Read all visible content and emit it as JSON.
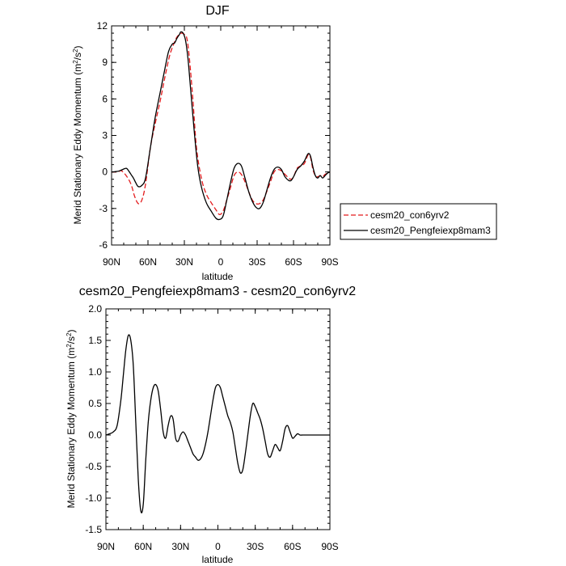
{
  "chart_data": [
    {
      "type": "line",
      "title": "DJF",
      "xlabel": "latitude",
      "ylabel": "Merid Stationary Eddy Momentum (m²/s²)",
      "ylabel_main": "Merid Stationary Eddy Momentum (m",
      "ylabel_sup": "2",
      "ylabel_mid": "/s",
      "ylabel_sup2": "2",
      "ylabel_end": ")",
      "x_ticks": [
        90,
        60,
        30,
        0,
        -30,
        -60,
        -90
      ],
      "x_tick_labels": [
        "90N",
        "60N",
        "30N",
        "0",
        "30S",
        "60S",
        "90S"
      ],
      "xlim": [
        90,
        -90
      ],
      "ylim": [
        -6,
        12
      ],
      "y_ticks": [
        -6,
        -3,
        0,
        3,
        6,
        9,
        12
      ],
      "y_tick_labels": [
        "-6",
        "-3",
        "0",
        "3",
        "6",
        "9",
        "12"
      ],
      "legend_position": "right",
      "series": [
        {
          "name": "cesm20_con6yrv2",
          "color": "#e31a1c",
          "dash": "dashed",
          "x": [
            90,
            85,
            82,
            78,
            74,
            71,
            68,
            65,
            62,
            58,
            54,
            50,
            46,
            42,
            38,
            36,
            34,
            32,
            30,
            28,
            26,
            23,
            20,
            16,
            12,
            8,
            4,
            1,
            -2,
            -5,
            -8,
            -11,
            -14,
            -17,
            -20,
            -23,
            -26,
            -29,
            -32,
            -35,
            -38,
            -41,
            -44,
            -47,
            -50,
            -53,
            -56,
            -58,
            -60,
            -63,
            -66,
            -69,
            -72,
            -74,
            -76,
            -78,
            -80,
            -82,
            -84,
            -86,
            -88,
            -90
          ],
          "y": [
            0,
            0,
            0.1,
            -0.3,
            -1.0,
            -2.0,
            -2.6,
            -2.3,
            -1.0,
            2.0,
            4.0,
            5.8,
            7.8,
            9.6,
            10.7,
            11.1,
            11.3,
            11.4,
            11.3,
            11.0,
            9.5,
            6.0,
            2.0,
            -0.5,
            -1.8,
            -2.5,
            -3.1,
            -3.5,
            -3.2,
            -2.3,
            -1.3,
            -0.3,
            0.0,
            -0.2,
            -0.8,
            -1.6,
            -2.3,
            -2.6,
            -2.6,
            -2.3,
            -1.6,
            -0.8,
            0.0,
            0.2,
            0.1,
            -0.2,
            -0.5,
            -0.6,
            -0.4,
            0.3,
            0.5,
            0.7,
            1.4,
            1.2,
            0.2,
            -0.3,
            -0.4,
            -0.3,
            -0.4,
            -0.2,
            -0.1,
            0
          ]
        },
        {
          "name": "cesm20_Pengfeiexp8mam3",
          "color": "#000000",
          "dash": "solid",
          "x": [
            90,
            85,
            82,
            78,
            76,
            74,
            72,
            70,
            68,
            65,
            62,
            58,
            54,
            50,
            46,
            43,
            40,
            38,
            36,
            34,
            33,
            31,
            29,
            27,
            25,
            22,
            19,
            16,
            12,
            8,
            4,
            1,
            -2,
            -5,
            -8,
            -11,
            -14,
            -17,
            -20,
            -23,
            -26,
            -29,
            -32,
            -35,
            -38,
            -41,
            -44,
            -47,
            -50,
            -53,
            -56,
            -58,
            -60,
            -63,
            -66,
            -69,
            -72,
            -74,
            -76,
            -78,
            -80,
            -82,
            -84,
            -86,
            -88,
            -90
          ],
          "y": [
            0,
            0.05,
            0.15,
            0.3,
            0.1,
            -0.2,
            -0.5,
            -0.9,
            -1.2,
            -1.1,
            -0.5,
            2.0,
            4.5,
            6.5,
            8.5,
            9.9,
            10.5,
            10.6,
            11.0,
            11.3,
            11.5,
            11.4,
            10.8,
            9.3,
            7.0,
            3.5,
            0.5,
            -1.2,
            -2.5,
            -3.2,
            -3.8,
            -3.9,
            -3.6,
            -2.3,
            -0.9,
            0.3,
            0.7,
            0.5,
            -0.5,
            -1.6,
            -2.4,
            -2.9,
            -3.0,
            -2.5,
            -1.5,
            -0.5,
            0.2,
            0.4,
            0.2,
            -0.4,
            -0.7,
            -0.7,
            -0.4,
            0.2,
            0.5,
            0.9,
            1.5,
            1.3,
            0.4,
            -0.3,
            -0.5,
            -0.3,
            -0.5,
            -0.3,
            -0.1,
            0
          ]
        }
      ]
    },
    {
      "type": "line",
      "title": "cesm20_Pengfeiexp8mam3 - cesm20_con6yrv2",
      "xlabel": "latitude",
      "ylabel": "Merid Stationary Eddy Momentum (m²/s²)",
      "ylabel_main": "Merid Stationary Eddy Momentum (m",
      "ylabel_sup": "2",
      "ylabel_mid": "/s",
      "ylabel_sup2": "2",
      "ylabel_end": ")",
      "x_ticks": [
        90,
        60,
        30,
        0,
        -30,
        -60,
        -90
      ],
      "x_tick_labels": [
        "90N",
        "60N",
        "30N",
        "0",
        "30S",
        "60S",
        "90S"
      ],
      "xlim": [
        90,
        -90
      ],
      "ylim": [
        -1.5,
        2.0
      ],
      "y_ticks": [
        -1.5,
        -1.0,
        -0.5,
        0.0,
        0.5,
        1.0,
        1.5,
        2.0
      ],
      "y_tick_labels": [
        "-1.5",
        "-1.0",
        "-0.5",
        "0.0",
        "0.5",
        "1.0",
        "1.5",
        "2.0"
      ],
      "series": [
        {
          "color": "#000000",
          "dash": "solid",
          "x": [
            90,
            87,
            84,
            81,
            78,
            76,
            74,
            72,
            70,
            68,
            66,
            64,
            62,
            60,
            58,
            56,
            54,
            52,
            50,
            48,
            46,
            44,
            42,
            40,
            38,
            36,
            34,
            32,
            30,
            28,
            26,
            24,
            22,
            20,
            18,
            16,
            14,
            12,
            10,
            8,
            6,
            4,
            2,
            0,
            -2,
            -4,
            -6,
            -8,
            -10,
            -12,
            -14,
            -16,
            -18,
            -20,
            -22,
            -24,
            -26,
            -28,
            -30,
            -32,
            -34,
            -36,
            -38,
            -40,
            -42,
            -44,
            -46,
            -48,
            -50,
            -52,
            -54,
            -56,
            -58,
            -60,
            -62,
            -64,
            -66,
            -68,
            -70,
            -72,
            -74,
            -76,
            -78,
            -80,
            -82,
            -84,
            -86,
            -88,
            -90
          ],
          "y": [
            0,
            0.02,
            0.05,
            0.15,
            0.55,
            0.95,
            1.35,
            1.58,
            1.5,
            1.1,
            0.2,
            -0.7,
            -1.2,
            -1.1,
            -0.4,
            0.2,
            0.55,
            0.75,
            0.8,
            0.7,
            0.4,
            0.05,
            -0.05,
            0.15,
            0.3,
            0.25,
            -0.05,
            -0.1,
            0.0,
            0.05,
            0.0,
            -0.1,
            -0.2,
            -0.3,
            -0.35,
            -0.4,
            -0.38,
            -0.3,
            -0.15,
            0.05,
            0.3,
            0.55,
            0.75,
            0.8,
            0.75,
            0.6,
            0.45,
            0.3,
            0.2,
            0.05,
            -0.2,
            -0.45,
            -0.6,
            -0.55,
            -0.3,
            0.0,
            0.3,
            0.5,
            0.45,
            0.35,
            0.25,
            0.1,
            -0.1,
            -0.3,
            -0.35,
            -0.25,
            -0.15,
            -0.2,
            -0.25,
            -0.1,
            0.1,
            0.15,
            0.05,
            -0.05,
            -0.02,
            0.02,
            0,
            0,
            0,
            0,
            0,
            0,
            0,
            0,
            0,
            0,
            0,
            0,
            0
          ]
        }
      ]
    }
  ]
}
